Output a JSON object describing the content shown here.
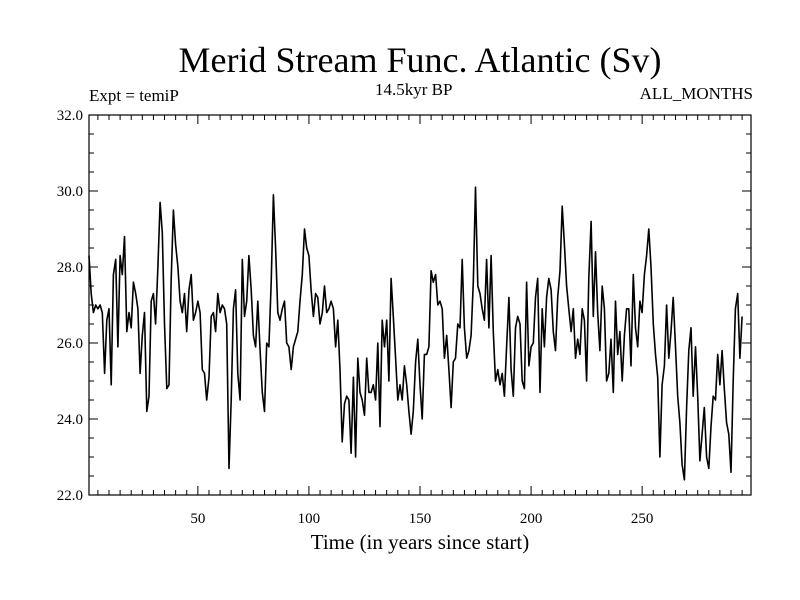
{
  "chart_data": {
    "type": "line",
    "title": "Merid Stream Func. Atlantic (Sv)",
    "subtitle_left": "Expt = temiP",
    "subtitle_center": "14.5kyr BP",
    "subtitle_right": "ALL_MONTHS",
    "xlabel": "Time (in years since start)",
    "ylabel": "",
    "xlim": [
      1,
      299
    ],
    "ylim": [
      22.0,
      32.0
    ],
    "xticks": [
      50,
      100,
      150,
      200,
      250
    ],
    "yticks": [
      22.0,
      24.0,
      26.0,
      28.0,
      30.0,
      32.0
    ],
    "ytick_labels": [
      "22.0",
      "24.0",
      "26.0",
      "28.0",
      "30.0",
      "32.0"
    ],
    "series": [
      {
        "name": "Merid Stream Func. Atlantic",
        "x_start": 1,
        "x_step": 1,
        "values": [
          28.3,
          27.3,
          26.8,
          27.0,
          26.9,
          27.0,
          26.8,
          25.2,
          26.6,
          26.9,
          24.9,
          27.8,
          28.2,
          25.9,
          28.3,
          27.8,
          28.8,
          26.3,
          26.8,
          26.4,
          27.6,
          27.3,
          26.9,
          25.2,
          26.2,
          26.8,
          24.2,
          24.6,
          27.1,
          27.3,
          26.5,
          28.0,
          29.7,
          28.9,
          26.5,
          24.8,
          24.9,
          27.7,
          29.5,
          28.6,
          28.0,
          27.1,
          26.8,
          27.3,
          26.3,
          27.4,
          27.8,
          26.6,
          26.8,
          27.1,
          26.8,
          25.3,
          25.2,
          24.5,
          25.1,
          26.7,
          26.8,
          26.3,
          27.3,
          26.8,
          27.0,
          26.9,
          26.5,
          22.7,
          24.5,
          26.9,
          27.4,
          25.2,
          24.5,
          28.2,
          26.7,
          27.1,
          28.3,
          27.4,
          26.2,
          25.9,
          27.1,
          25.8,
          24.7,
          24.2,
          26.0,
          25.9,
          27.6,
          29.9,
          28.5,
          26.8,
          26.6,
          26.9,
          27.1,
          26.0,
          25.9,
          25.3,
          25.9,
          26.1,
          26.3,
          27.1,
          27.8,
          29.0,
          28.5,
          28.3,
          27.4,
          26.7,
          27.3,
          27.2,
          26.5,
          26.8,
          27.5,
          26.8,
          26.9,
          27.1,
          26.9,
          25.9,
          26.6,
          25.3,
          23.4,
          24.4,
          24.6,
          24.5,
          23.1,
          25.1,
          23.0,
          25.6,
          24.7,
          24.5,
          24.1,
          25.6,
          24.7,
          24.7,
          24.9,
          24.5,
          26.0,
          23.8,
          26.6,
          25.9,
          26.6,
          25.0,
          27.7,
          26.7,
          25.6,
          24.5,
          24.9,
          24.5,
          25.4,
          24.9,
          24.2,
          23.6,
          24.2,
          25.5,
          26.1,
          24.9,
          24.0,
          25.7,
          25.7,
          25.9,
          27.9,
          27.6,
          27.8,
          27.0,
          27.1,
          26.9,
          25.6,
          26.2,
          25.3,
          24.3,
          25.5,
          25.6,
          26.5,
          26.4,
          28.2,
          26.4,
          25.6,
          25.8,
          26.2,
          27.6,
          30.1,
          27.5,
          27.3,
          26.9,
          26.6,
          28.2,
          26.4,
          28.3,
          26.3,
          25.0,
          25.3,
          24.9,
          25.2,
          24.6,
          25.9,
          27.2,
          25.3,
          24.6,
          26.4,
          26.7,
          26.5,
          25.0,
          24.8,
          27.6,
          25.4,
          25.9,
          26.0,
          27.2,
          27.7,
          24.7,
          26.9,
          25.9,
          27.2,
          27.7,
          27.4,
          26.3,
          25.8,
          27.2,
          27.9,
          29.6,
          28.6,
          27.5,
          26.9,
          26.3,
          26.9,
          25.6,
          26.1,
          25.7,
          26.9,
          26.6,
          25.0,
          27.7,
          29.2,
          26.7,
          28.4,
          26.8,
          25.8,
          27.5,
          26.9,
          25.0,
          25.2,
          26.1,
          24.7,
          27.1,
          25.7,
          26.3,
          25.0,
          26.2,
          26.9,
          26.9,
          25.4,
          27.8,
          26.4,
          25.9,
          27.1,
          26.8,
          27.8,
          28.3,
          29.0,
          28.0,
          26.5,
          25.7,
          25.1,
          23.0,
          24.9,
          25.4,
          27.0,
          25.6,
          26.3,
          27.2,
          25.9,
          24.6,
          23.9,
          22.8,
          22.4,
          24.3,
          25.8,
          26.4,
          24.6,
          25.9,
          24.6,
          22.9,
          23.6,
          24.3,
          23.0,
          22.7,
          23.8,
          24.6,
          24.5,
          25.7,
          24.9,
          25.8,
          24.8,
          23.9,
          23.6,
          22.6,
          25.0,
          26.9,
          27.3,
          25.6,
          26.7
        ]
      }
    ]
  }
}
